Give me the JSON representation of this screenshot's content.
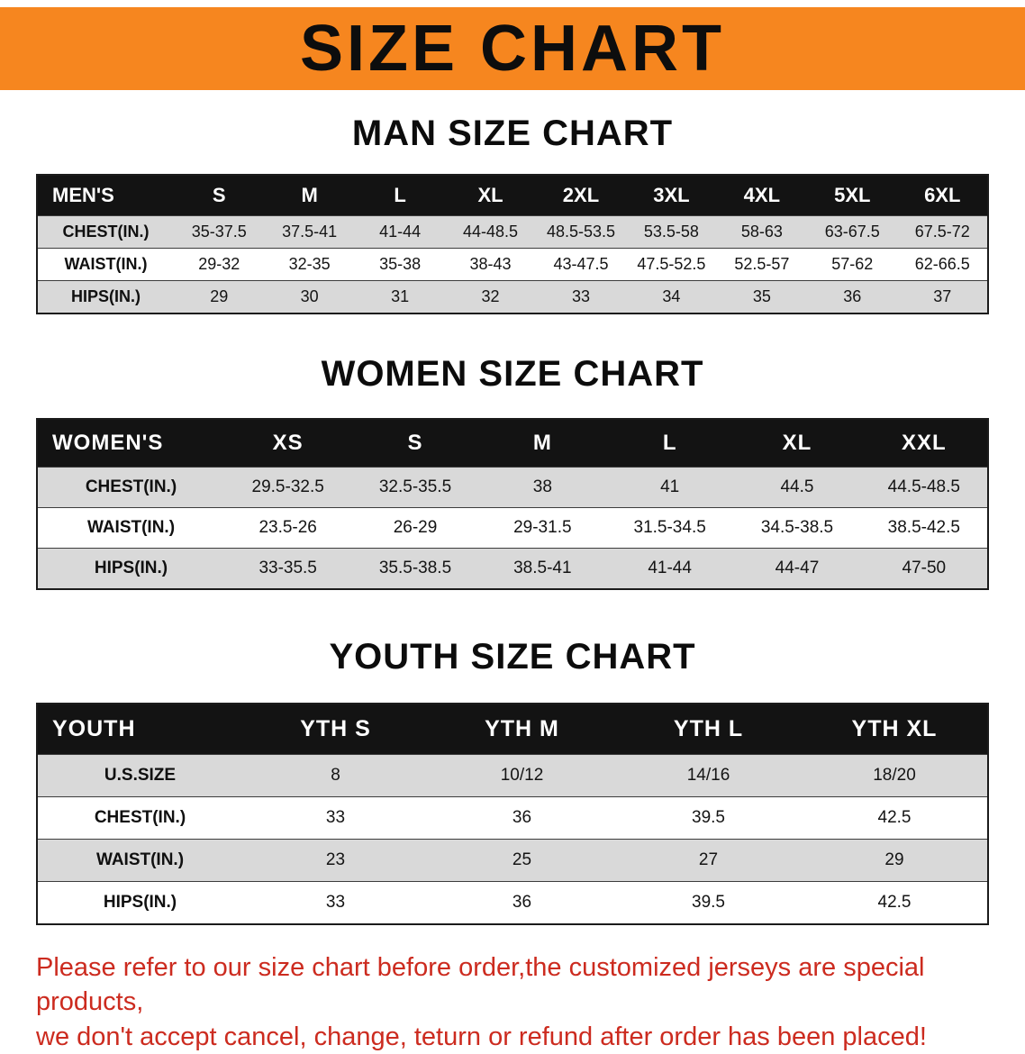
{
  "banner": {
    "title": "SIZE CHART"
  },
  "colors": {
    "banner_bg": "#f6861f",
    "table_header_bg": "#131313",
    "table_header_text": "#ffffff",
    "row_stripe": "#d9d9d9",
    "disclaimer_text": "#cc2b1f"
  },
  "chart_data": [
    {
      "type": "table",
      "title": "MAN SIZE CHART",
      "corner_label": "MEN'S",
      "columns": [
        "S",
        "M",
        "L",
        "XL",
        "2XL",
        "3XL",
        "4XL",
        "5XL",
        "6XL"
      ],
      "row_labels": [
        "CHEST(IN.)",
        "WAIST(IN.)",
        "HIPS(IN.)"
      ],
      "rows": [
        [
          "35-37.5",
          "37.5-41",
          "41-44",
          "44-48.5",
          "48.5-53.5",
          "53.5-58",
          "58-63",
          "63-67.5",
          "67.5-72"
        ],
        [
          "29-32",
          "32-35",
          "35-38",
          "38-43",
          "43-47.5",
          "47.5-52.5",
          "52.5-57",
          "57-62",
          "62-66.5"
        ],
        [
          "29",
          "30",
          "31",
          "32",
          "33",
          "34",
          "35",
          "36",
          "37"
        ]
      ]
    },
    {
      "type": "table",
      "title": "WOMEN SIZE CHART",
      "corner_label": "WOMEN'S",
      "columns": [
        "XS",
        "S",
        "M",
        "L",
        "XL",
        "XXL"
      ],
      "row_labels": [
        "CHEST(IN.)",
        "WAIST(IN.)",
        "HIPS(IN.)"
      ],
      "rows": [
        [
          "29.5-32.5",
          "32.5-35.5",
          "38",
          "41",
          "44.5",
          "44.5-48.5"
        ],
        [
          "23.5-26",
          "26-29",
          "29-31.5",
          "31.5-34.5",
          "34.5-38.5",
          "38.5-42.5"
        ],
        [
          "33-35.5",
          "35.5-38.5",
          "38.5-41",
          "41-44",
          "44-47",
          "47-50"
        ]
      ]
    },
    {
      "type": "table",
      "title": "YOUTH SIZE CHART",
      "corner_label": "YOUTH",
      "columns": [
        "YTH S",
        "YTH M",
        "YTH L",
        "YTH XL"
      ],
      "row_labels": [
        "U.S.SIZE",
        "CHEST(IN.)",
        "WAIST(IN.)",
        "HIPS(IN.)"
      ],
      "rows": [
        [
          "8",
          "10/12",
          "14/16",
          "18/20"
        ],
        [
          "33",
          "36",
          "39.5",
          "42.5"
        ],
        [
          "23",
          "25",
          "27",
          "29"
        ],
        [
          "33",
          "36",
          "39.5",
          "42.5"
        ]
      ]
    }
  ],
  "disclaimer": {
    "line1": "Please refer to our size chart before order,the customized jerseys are special products,",
    "line2": "we don't accept cancel, change, teturn or refund after order has been placed!"
  }
}
